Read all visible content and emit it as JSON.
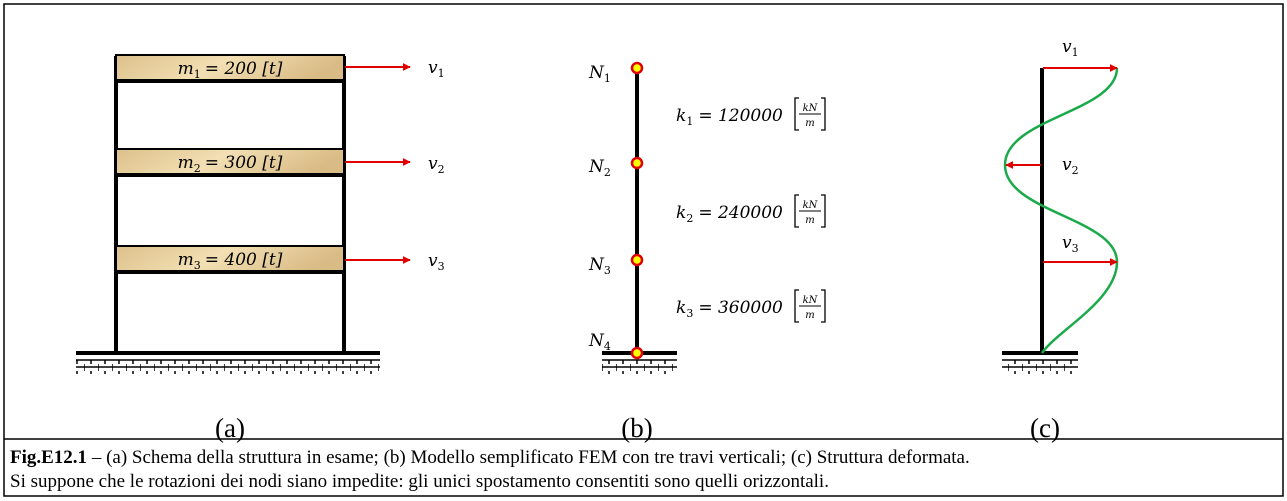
{
  "panels": [
    {
      "label": "(a)"
    },
    {
      "label": "(b)"
    },
    {
      "label": "(c)"
    }
  ],
  "masses": [
    {
      "symbol": "m",
      "index": "1",
      "text": "= 200 [t]"
    },
    {
      "symbol": "m",
      "index": "2",
      "text": "= 300 [t]"
    },
    {
      "symbol": "m",
      "index": "3",
      "text": "= 400 [t]"
    }
  ],
  "displacements": [
    {
      "symbol": "v",
      "index": "1"
    },
    {
      "symbol": "v",
      "index": "2"
    },
    {
      "symbol": "v",
      "index": "3"
    }
  ],
  "nodes": [
    {
      "symbol": "N",
      "index": "1"
    },
    {
      "symbol": "N",
      "index": "2"
    },
    {
      "symbol": "N",
      "index": "3"
    },
    {
      "symbol": "N",
      "index": "4"
    }
  ],
  "stiffness": [
    {
      "symbol": "k",
      "index": "1",
      "text": "= 120000",
      "unit_num": "kN",
      "unit_den": "m"
    },
    {
      "symbol": "k",
      "index": "2",
      "text": "= 240000",
      "unit_num": "kN",
      "unit_den": "m"
    },
    {
      "symbol": "k",
      "index": "3",
      "text": "= 360000",
      "unit_num": "kN",
      "unit_den": "m"
    }
  ],
  "caption": {
    "label": "Fig.E12.1",
    "text": " – (a) Schema della struttura in esame; (b) Modello semplificato FEM con tre travi verticali; (c) Struttura deformata.",
    "note": "Si suppone che le rotazioni dei nodi siano impedite: gli unici spostamento consentiti sono quelli orizzontali."
  }
}
